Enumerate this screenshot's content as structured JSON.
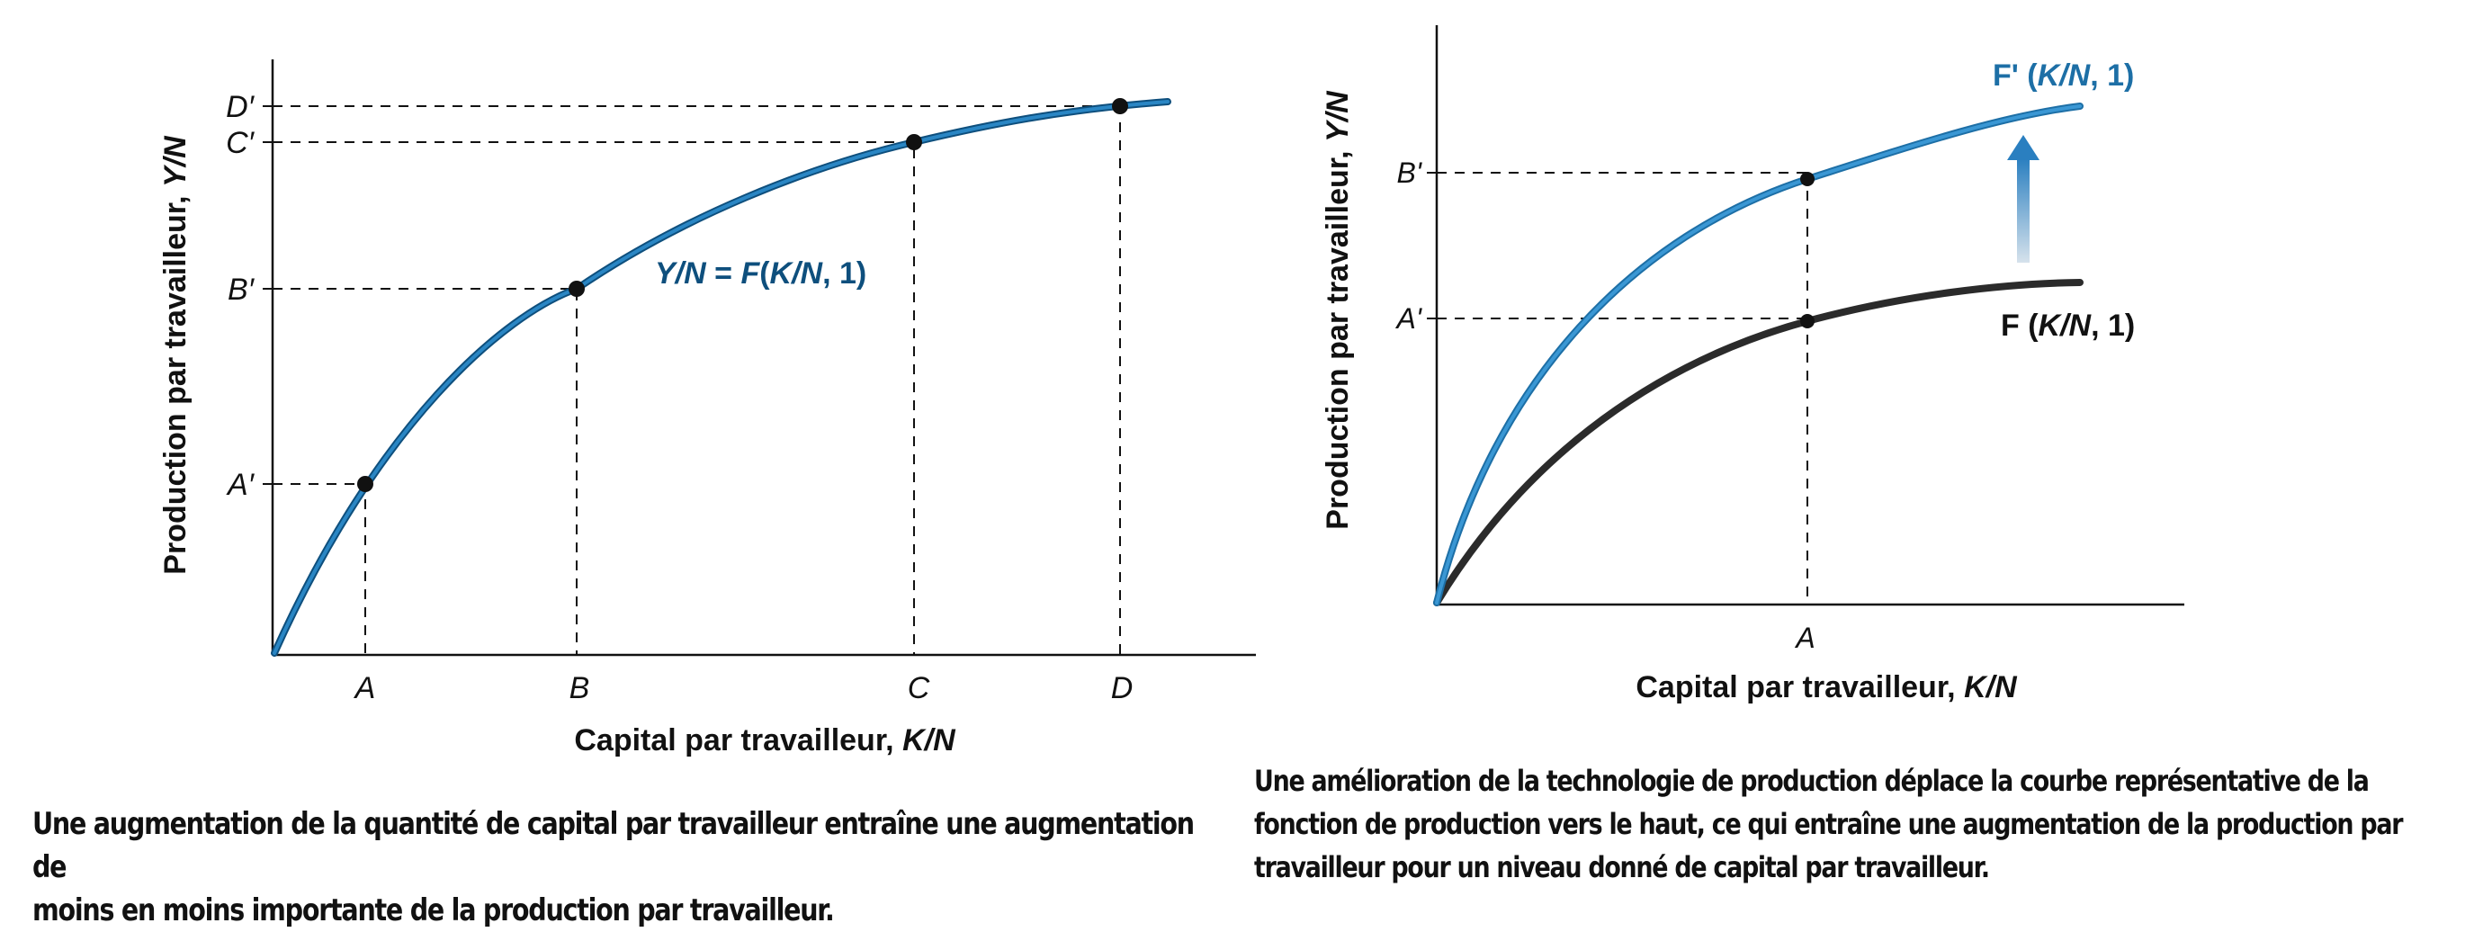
{
  "chart_data": [
    {
      "type": "line",
      "xlabel": "Capital par travailleur, K/N",
      "ylabel": "Production par travailleur, Y/N",
      "x_ticks": [
        "A",
        "B",
        "C",
        "D"
      ],
      "y_ticks": [
        "A′",
        "B′",
        "C′",
        "D′"
      ],
      "series": [
        {
          "name": "Y/N = F(K/N, 1)",
          "color": "#1f78b0"
        }
      ],
      "points": [
        {
          "x": "A",
          "y": "A′"
        },
        {
          "x": "B",
          "y": "B′"
        },
        {
          "x": "C",
          "y": "C′"
        },
        {
          "x": "D",
          "y": "D′"
        }
      ],
      "grid": false,
      "legend": "inline"
    },
    {
      "type": "line",
      "xlabel": "Capital par travailleur, K/N",
      "ylabel": "Production par travailleur, Y/N",
      "x_ticks": [
        "A"
      ],
      "y_ticks": [
        "A'",
        "B'"
      ],
      "series": [
        {
          "name": "F' (K/N, 1)",
          "color": "#2a86c4"
        },
        {
          "name": "F (K/N, 1)",
          "color": "#2b2b2b"
        }
      ],
      "points": [
        {
          "x": "A",
          "y": "B'",
          "series": "F' (K/N, 1)"
        },
        {
          "x": "A",
          "y": "A'",
          "series": "F (K/N, 1)"
        }
      ],
      "annotation": "upward arrow from F to F'",
      "grid": false,
      "legend": "inline"
    }
  ],
  "left": {
    "ylabel": "Production par travailleur, ",
    "ylabel_var": "Y/N",
    "xlabel": "Capital par travailleur, ",
    "xlabel_var": "K/N",
    "x_ticks": [
      "A",
      "B",
      "C",
      "D"
    ],
    "y_ticks": [
      "A′",
      "B′",
      "C′",
      "D′"
    ],
    "curve_label_var1": "Y/N",
    "curve_label_eq": " = ",
    "curve_label_f": "F",
    "curve_label_paren_open": "(",
    "curve_label_var2": "K/N",
    "curve_label_rest": ", 1)"
  },
  "right": {
    "ylabel": "Production par travailleur, ",
    "ylabel_var": "Y/N",
    "xlabel": "Capital par travailleur, ",
    "xlabel_var": "K/N",
    "x_tick": "A",
    "y_ticks": [
      "A'",
      "B'"
    ],
    "upper_label_prefix": "F' (",
    "upper_label_var": "K/N",
    "upper_label_suffix": ", 1)",
    "lower_label_prefix": "F (",
    "lower_label_var": "K/N",
    "lower_label_suffix": ", 1)"
  },
  "captions": {
    "left_line1": "Une augmentation de la quantité de capital par travailleur entraîne une augmentation de",
    "left_line2": "moins en moins importante de la production par travailleur.",
    "right_line1": "Une amélioration de la technologie de production déplace la courbe représentative de la",
    "right_line2": "fonction de production vers le haut, ce qui entraîne une augmentation de la production par",
    "right_line3": "travailleur pour un niveau donné de capital par travailleur."
  },
  "colors": {
    "blue_curve": "#1f78b0",
    "blue_curve_light": "#2a86c4",
    "black_curve": "#2b2b2b",
    "arrow_top": "#2a7fc0",
    "arrow_bottom": "#c8d8e6"
  }
}
